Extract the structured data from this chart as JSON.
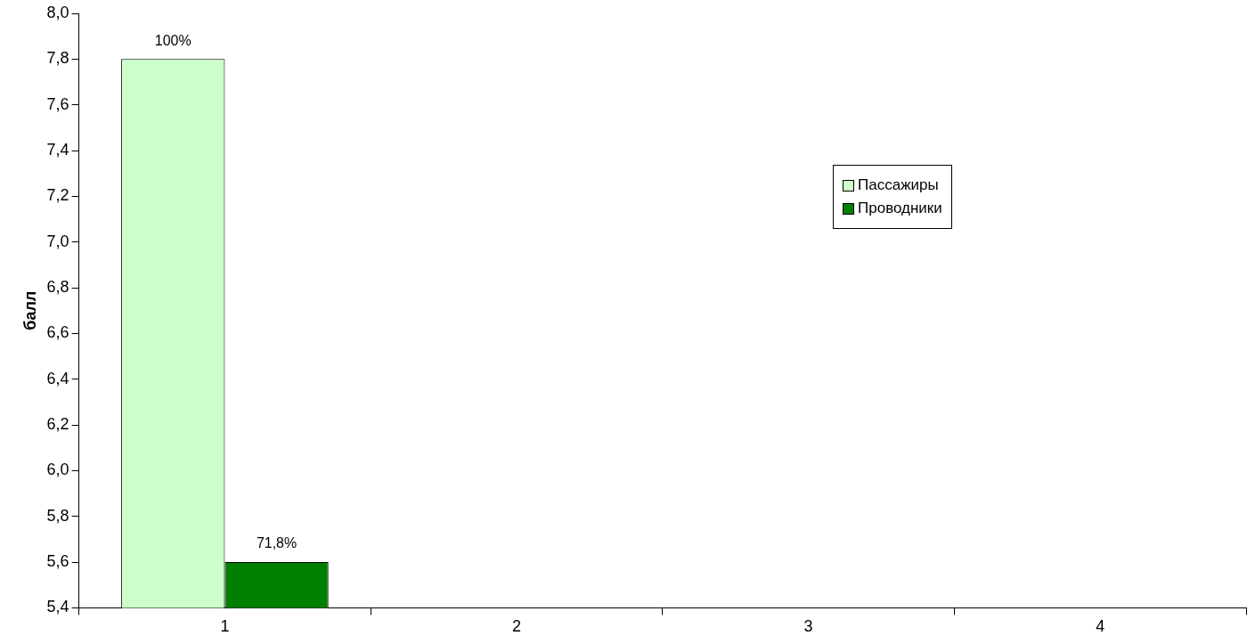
{
  "chart_data": {
    "type": "bar",
    "ylabel": "балл",
    "categories": [
      "1",
      "2",
      "3",
      "4"
    ],
    "series": [
      {
        "name": "Пассажиры",
        "color": "#ccffcc",
        "values": [
          7.8,
          null,
          null,
          null
        ]
      },
      {
        "name": "Проводники",
        "color": "#008000",
        "values": [
          5.6,
          null,
          null,
          null
        ]
      }
    ],
    "annotations": [
      {
        "text": "100%",
        "x": "1",
        "y": 7.8
      },
      {
        "text": "71,8%",
        "x": "1",
        "y": 5.6
      }
    ],
    "ylim": [
      5.4,
      8.0
    ],
    "yticks": [
      {
        "value": 5.4,
        "label": "5,4"
      },
      {
        "value": 5.6,
        "label": "5,6"
      },
      {
        "value": 5.8,
        "label": "5,8"
      },
      {
        "value": 6.0,
        "label": "6,0"
      },
      {
        "value": 6.2,
        "label": "6,2"
      },
      {
        "value": 6.4,
        "label": "6,4"
      },
      {
        "value": 6.6,
        "label": "6,6"
      },
      {
        "value": 6.8,
        "label": "6,8"
      },
      {
        "value": 7.0,
        "label": "7,0"
      },
      {
        "value": 7.2,
        "label": "7,2"
      },
      {
        "value": 7.4,
        "label": "7,4"
      },
      {
        "value": 7.6,
        "label": "7,6"
      },
      {
        "value": 7.8,
        "label": "7,8"
      },
      {
        "value": 8.0,
        "label": "8,0"
      }
    ],
    "grid": false,
    "legend": "top right"
  }
}
